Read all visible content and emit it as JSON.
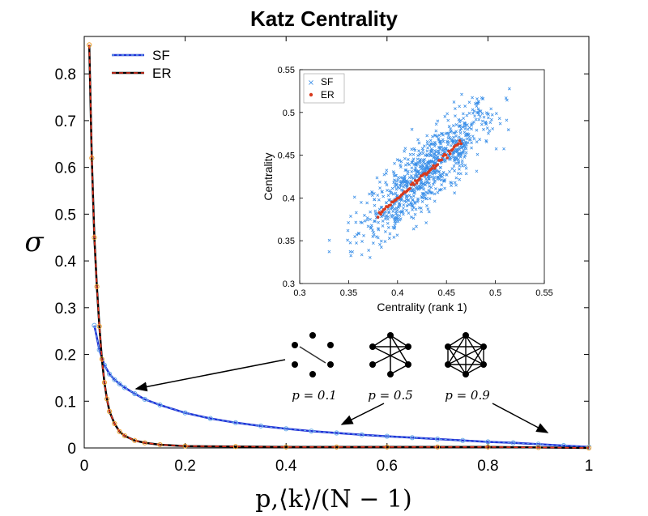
{
  "chart_data": [
    {
      "type": "line",
      "title": "Katz Centrality",
      "xlabel": "p,⟨k⟩/(N − 1)",
      "ylabel": "σ",
      "xlim": [
        0,
        1
      ],
      "ylim": [
        0,
        0.88
      ],
      "xticks": [
        0,
        0.2,
        0.4,
        0.6,
        0.8,
        1
      ],
      "xtick_labels": [
        "0",
        "0.2",
        "0.4",
        "0.6",
        "0.8",
        "1"
      ],
      "yticks": [
        0,
        0.1,
        0.2,
        0.3,
        0.4,
        0.5,
        0.6,
        0.7,
        0.8
      ],
      "ytick_labels": [
        "0",
        "0.1",
        "0.2",
        "0.3",
        "0.4",
        "0.5",
        "0.6",
        "0.7",
        "0.8"
      ],
      "legend": "top-left",
      "series": [
        {
          "name": "SF",
          "color": "#1f2fd6",
          "marker_color": "#6aaeea",
          "x": [
            0.02,
            0.03,
            0.04,
            0.05,
            0.06,
            0.07,
            0.08,
            0.1,
            0.12,
            0.15,
            0.2,
            0.25,
            0.3,
            0.35,
            0.4,
            0.45,
            0.5,
            0.55,
            0.6,
            0.65,
            0.7,
            0.75,
            0.8,
            0.85,
            0.9,
            0.95,
            1.0
          ],
          "y": [
            0.262,
            0.21,
            0.177,
            0.158,
            0.146,
            0.137,
            0.129,
            0.116,
            0.104,
            0.092,
            0.075,
            0.063,
            0.054,
            0.047,
            0.041,
            0.036,
            0.032,
            0.028,
            0.025,
            0.022,
            0.019,
            0.016,
            0.013,
            0.011,
            0.008,
            0.005,
            0.002
          ]
        },
        {
          "name": "ER",
          "color": "#000000",
          "dash_color": "#e8301c",
          "marker_color": "#f0a030",
          "x": [
            0.01,
            0.015,
            0.02,
            0.025,
            0.03,
            0.035,
            0.04,
            0.045,
            0.05,
            0.06,
            0.07,
            0.08,
            0.1,
            0.12,
            0.15,
            0.2,
            0.3,
            0.4,
            0.5,
            0.6,
            0.7,
            0.8,
            0.9,
            1.0
          ],
          "y": [
            0.862,
            0.62,
            0.45,
            0.345,
            0.26,
            0.19,
            0.14,
            0.105,
            0.078,
            0.052,
            0.035,
            0.026,
            0.016,
            0.011,
            0.007,
            0.004,
            0.003,
            0.002,
            0.002,
            0.002,
            0.002,
            0.002,
            0.001,
            0.0
          ]
        }
      ],
      "annotations": {
        "network_labels": [
          "p = 0.1",
          "p = 0.5",
          "p = 0.9"
        ]
      }
    },
    {
      "type": "scatter",
      "xlabel": "Centrality (rank 1)",
      "ylabel": "Centrality",
      "xlim": [
        0.3,
        0.55
      ],
      "ylim": [
        0.3,
        0.55
      ],
      "xticks": [
        0.3,
        0.35,
        0.4,
        0.45,
        0.5,
        0.55
      ],
      "xtick_labels": [
        "0.3",
        "0.35",
        "0.4",
        "0.45",
        "0.5",
        "0.55"
      ],
      "yticks": [
        0.3,
        0.35,
        0.4,
        0.45,
        0.5,
        0.55
      ],
      "ytick_labels": [
        "0.3",
        "0.35",
        "0.4",
        "0.45",
        "0.5",
        "0.55"
      ],
      "legend": "top-left",
      "series": [
        {
          "name": "SF",
          "color": "#3a8fe8",
          "marker": "x",
          "x_range": [
            0.33,
            0.53
          ],
          "description_trend": "y ≈ x with spread ±0.02",
          "count": 900
        },
        {
          "name": "ER",
          "color": "#d83a1e",
          "marker": "dot",
          "x_range": [
            0.38,
            0.465
          ],
          "description_trend": "y ≈ x"
        }
      ]
    }
  ]
}
